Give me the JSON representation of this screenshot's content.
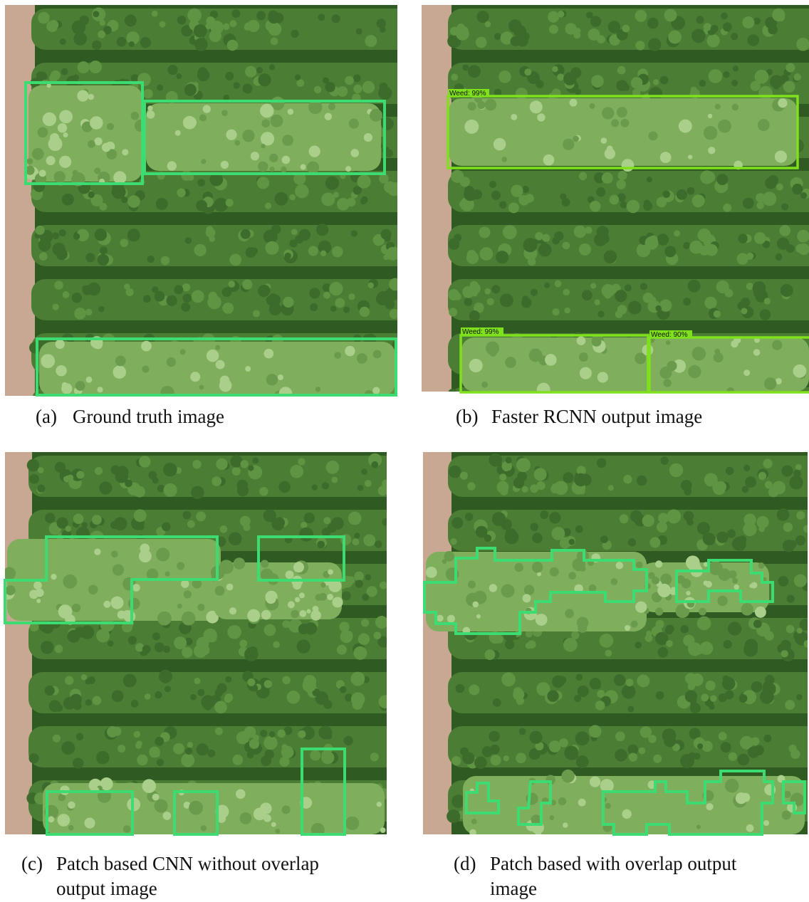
{
  "figure": {
    "panels": [
      {
        "tag": "(a)",
        "caption": [
          "Ground truth image"
        ]
      },
      {
        "tag": "(b)",
        "caption": [
          "Faster RCNN output image"
        ],
        "detections": [
          "Weed: 99%",
          "Weed: 99%",
          "Weed: 90%"
        ]
      },
      {
        "tag": "(c)",
        "caption": [
          "Patch based CNN without overlap",
          "output image"
        ]
      },
      {
        "tag": "(d)",
        "caption": [
          "Patch based with overlap output",
          "image"
        ]
      }
    ]
  }
}
